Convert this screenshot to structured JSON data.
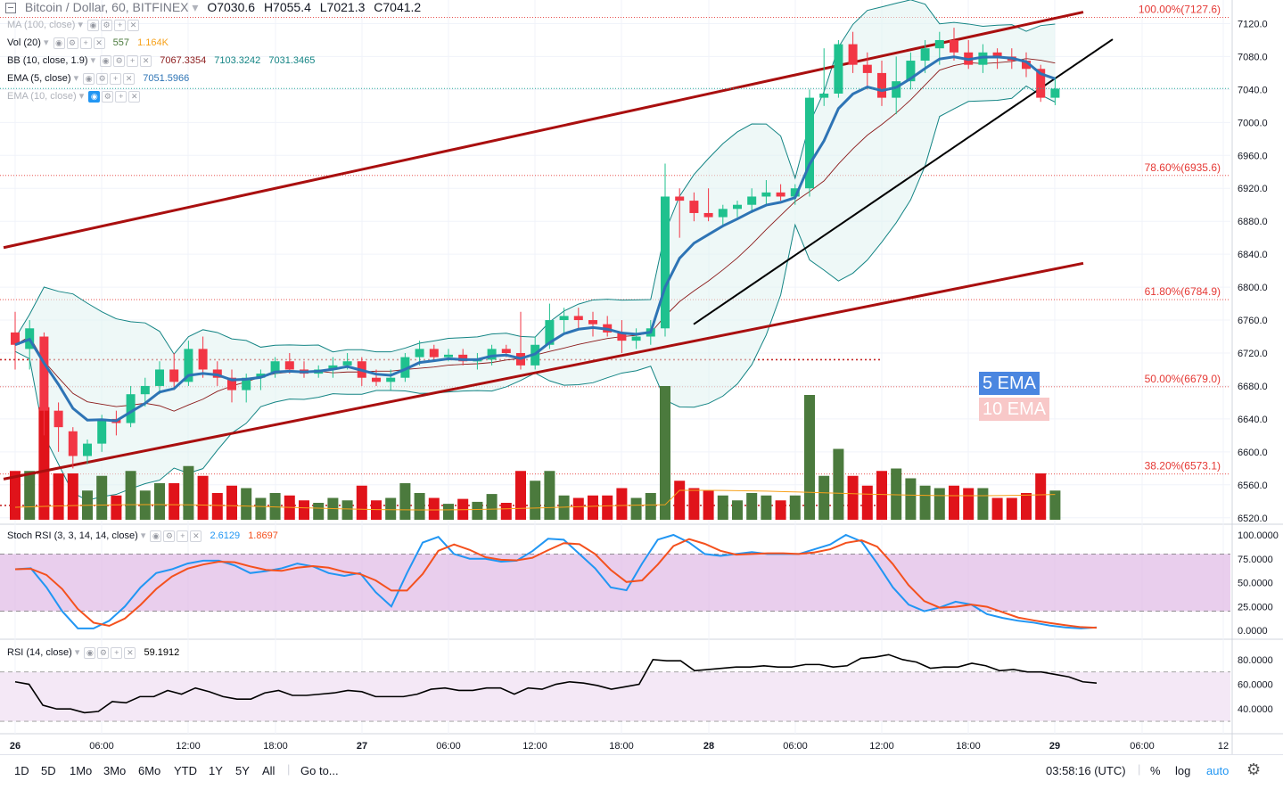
{
  "header": {
    "symbol": "Bitcoin / Dollar, 60, BITFINEX",
    "open": "O7030.6",
    "high": "H7055.4",
    "low": "L7021.3",
    "close": "C7041.2"
  },
  "indicators": {
    "ma": {
      "label": "MA (100, close)"
    },
    "vol": {
      "label": "Vol (20)",
      "v1": "557",
      "v2": "1.164K"
    },
    "bb": {
      "label": "BB (10, close, 1.9)",
      "v1": "7067.3354",
      "v2": "7103.3242",
      "v3": "7031.3465"
    },
    "ema5": {
      "label": "EMA (5, close)",
      "v1": "7051.5966"
    },
    "ema10": {
      "label": "EMA (10, close)"
    },
    "stoch": {
      "label": "Stoch RSI (3, 3, 14, 14, close)",
      "v1": "2.6129",
      "v2": "1.8697"
    },
    "rsi": {
      "label": "RSI (14, close)",
      "v1": "59.1912"
    }
  },
  "badges": {
    "ema5": "5 EMA",
    "ema10": "10 EMA"
  },
  "fib_levels": [
    {
      "label": "100.00%(7127.6)",
      "price": 7127.6
    },
    {
      "label": "78.60%(6935.6)",
      "price": 6935.6
    },
    {
      "label": "61.80%(6784.9)",
      "price": 6784.9
    },
    {
      "label": "50.00%(6679.0)",
      "price": 6679.0
    },
    {
      "label": "38.20%(6573.1)",
      "price": 6573.1
    }
  ],
  "price_axis": [
    "7120.0",
    "7080.0",
    "7040.0",
    "7000.0",
    "6960.0",
    "6920.0",
    "6880.0",
    "6840.0",
    "6800.0",
    "6760.0",
    "6720.0",
    "6680.0",
    "6640.0",
    "6600.0",
    "6560.0",
    "6520.0"
  ],
  "stoch_axis": [
    "100.0000",
    "75.0000",
    "50.0000",
    "25.0000",
    "0.0000"
  ],
  "rsi_axis": [
    "80.0000",
    "60.0000",
    "40.0000"
  ],
  "time_axis": [
    "26",
    "06:00",
    "12:00",
    "18:00",
    "27",
    "06:00",
    "12:00",
    "18:00",
    "28",
    "06:00",
    "12:00",
    "18:00",
    "29",
    "06:00",
    "12"
  ],
  "toolbar": {
    "ranges": [
      "1D",
      "5D",
      "1Mo",
      "3Mo",
      "6Mo",
      "YTD",
      "1Y",
      "5Y",
      "All"
    ],
    "goto": "Go to...",
    "clock": "03:58:16 (UTC)",
    "percent": "%",
    "log": "log",
    "auto": "auto"
  },
  "colors": {
    "up": "#26a69a",
    "up_candle": "#1fc18e",
    "down": "#f23645",
    "vol_up": "#4b7a3d",
    "vol_down": "#e0131a",
    "channel": "#a90f0f",
    "ema5": "#2e74b5",
    "ema10": "#8b1a1a",
    "bb": "#138484",
    "stoch_k": "#2196f3",
    "stoch_d": "#f4511e",
    "rsi_line": "#000000",
    "band_fill": "#e1bee7",
    "fib": "#e53935"
  },
  "chart_data": {
    "type": "candlestick",
    "title": "Bitcoin / Dollar, 60, BITFINEX",
    "ylim": [
      6510,
      7140
    ],
    "candles": [
      [
        6745,
        6770,
        6700,
        6730
      ],
      [
        6725,
        6760,
        6700,
        6750
      ],
      [
        6740,
        6745,
        6620,
        6650
      ],
      [
        6650,
        6660,
        6600,
        6630
      ],
      [
        6625,
        6630,
        6580,
        6595
      ],
      [
        6595,
        6615,
        6585,
        6610
      ],
      [
        6610,
        6645,
        6600,
        6640
      ],
      [
        6640,
        6650,
        6620,
        6635
      ],
      [
        6635,
        6680,
        6630,
        6670
      ],
      [
        6670,
        6690,
        6655,
        6680
      ],
      [
        6680,
        6710,
        6670,
        6700
      ],
      [
        6700,
        6720,
        6675,
        6685
      ],
      [
        6685,
        6735,
        6680,
        6725
      ],
      [
        6725,
        6740,
        6690,
        6700
      ],
      [
        6700,
        6710,
        6680,
        6690
      ],
      [
        6690,
        6700,
        6660,
        6675
      ],
      [
        6675,
        6695,
        6660,
        6690
      ],
      [
        6690,
        6700,
        6675,
        6695
      ],
      [
        6695,
        6715,
        6690,
        6710
      ],
      [
        6710,
        6720,
        6695,
        6700
      ],
      [
        6700,
        6710,
        6690,
        6695
      ],
      [
        6695,
        6705,
        6690,
        6700
      ],
      [
        6700,
        6715,
        6690,
        6705
      ],
      [
        6705,
        6720,
        6700,
        6710
      ],
      [
        6710,
        6715,
        6680,
        6690
      ],
      [
        6690,
        6700,
        6680,
        6685
      ],
      [
        6685,
        6700,
        6675,
        6690
      ],
      [
        6690,
        6720,
        6685,
        6715
      ],
      [
        6715,
        6735,
        6705,
        6725
      ],
      [
        6725,
        6730,
        6710,
        6715
      ],
      [
        6715,
        6725,
        6710,
        6718
      ],
      [
        6718,
        6725,
        6705,
        6710
      ],
      [
        6710,
        6720,
        6700,
        6712
      ],
      [
        6712,
        6730,
        6705,
        6725
      ],
      [
        6725,
        6730,
        6715,
        6720
      ],
      [
        6720,
        6770,
        6700,
        6705
      ],
      [
        6705,
        6740,
        6700,
        6730
      ],
      [
        6730,
        6780,
        6725,
        6760
      ],
      [
        6760,
        6775,
        6745,
        6765
      ],
      [
        6765,
        6775,
        6750,
        6760
      ],
      [
        6760,
        6770,
        6740,
        6755
      ],
      [
        6755,
        6765,
        6740,
        6745
      ],
      [
        6745,
        6760,
        6720,
        6735
      ],
      [
        6735,
        6750,
        6725,
        6740
      ],
      [
        6740,
        6760,
        6730,
        6750
      ],
      [
        6750,
        6950,
        6740,
        6910
      ],
      [
        6910,
        6920,
        6860,
        6905
      ],
      [
        6905,
        6915,
        6880,
        6890
      ],
      [
        6890,
        6920,
        6880,
        6885
      ],
      [
        6885,
        6900,
        6875,
        6895
      ],
      [
        6895,
        6905,
        6885,
        6900
      ],
      [
        6900,
        6920,
        6890,
        6910
      ],
      [
        6910,
        6930,
        6900,
        6915
      ],
      [
        6915,
        6925,
        6905,
        6910
      ],
      [
        6910,
        6925,
        6900,
        6920
      ],
      [
        6920,
        7040,
        6910,
        7030
      ],
      [
        7030,
        7090,
        7020,
        7035
      ],
      [
        7035,
        7100,
        7030,
        7095
      ],
      [
        7095,
        7110,
        7060,
        7070
      ],
      [
        7070,
        7085,
        7040,
        7060
      ],
      [
        7060,
        7075,
        7020,
        7030
      ],
      [
        7030,
        7080,
        7010,
        7050
      ],
      [
        7050,
        7085,
        7040,
        7075
      ],
      [
        7075,
        7100,
        7060,
        7090
      ],
      [
        7090,
        7110,
        7070,
        7100
      ],
      [
        7100,
        7115,
        7075,
        7085
      ],
      [
        7085,
        7100,
        7065,
        7070
      ],
      [
        7070,
        7095,
        7060,
        7085
      ],
      [
        7085,
        7090,
        7065,
        7080
      ],
      [
        7080,
        7090,
        7065,
        7075
      ],
      [
        7075,
        7085,
        7055,
        7065
      ],
      [
        7065,
        7070,
        7025,
        7030
      ],
      [
        7030,
        7055,
        7021,
        7041
      ]
    ]
  }
}
